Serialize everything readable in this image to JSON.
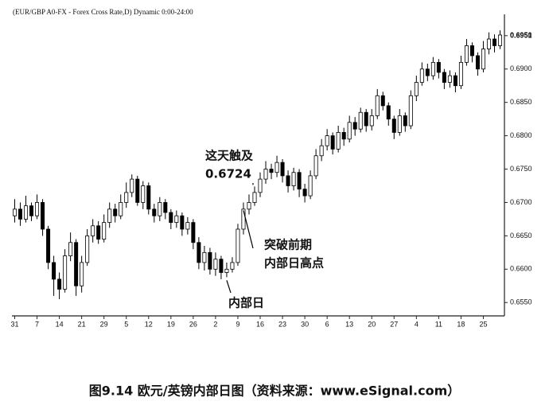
{
  "chart_data": {
    "type": "candlestick",
    "title": "(EUR/GBP A0-FX - Forex Cross Rate,D) Dynamic 0:00-24:00",
    "caption": "图9.14 欧元/英镑内部日图（资料来源：www.eSignal.com）",
    "annotations": [
      {
        "lines": [
          "这天触及",
          "0.6724"
        ],
        "index": 43
      },
      {
        "lines": [
          "突破前期",
          "内部日高点"
        ],
        "index": 41
      },
      {
        "lines": [
          "内部日"
        ],
        "index": 38
      }
    ],
    "up_color": "#ffffff",
    "down_color": "#000000",
    "open": [
      0.668,
      0.669,
      0.6675,
      0.6695,
      0.668,
      0.67,
      0.666,
      0.661,
      0.6585,
      0.657,
      0.662,
      0.664,
      0.6575,
      0.661,
      0.665,
      0.6665,
      0.6645,
      0.667,
      0.669,
      0.668,
      0.67,
      0.6715,
      0.6735,
      0.67,
      0.6725,
      0.669,
      0.668,
      0.67,
      0.6685,
      0.667,
      0.668,
      0.666,
      0.667,
      0.664,
      0.661,
      0.6625,
      0.66,
      0.6615,
      0.6595,
      0.66,
      0.661,
      0.666,
      0.669,
      0.67,
      0.6715,
      0.6735,
      0.675,
      0.6745,
      0.676,
      0.674,
      0.6725,
      0.6745,
      0.672,
      0.671,
      0.674,
      0.677,
      0.6785,
      0.68,
      0.678,
      0.6805,
      0.6795,
      0.682,
      0.681,
      0.6835,
      0.6815,
      0.683,
      0.686,
      0.6845,
      0.6825,
      0.6805,
      0.683,
      0.6815,
      0.686,
      0.688,
      0.69,
      0.689,
      0.691,
      0.6895,
      0.688,
      0.689,
      0.6875,
      0.691,
      0.6935,
      0.692,
      0.69,
      0.693,
      0.6945,
      0.6935
    ],
    "high": [
      0.6705,
      0.67,
      0.671,
      0.67,
      0.6712,
      0.6705,
      0.6665,
      0.662,
      0.6595,
      0.663,
      0.6655,
      0.6645,
      0.662,
      0.666,
      0.6675,
      0.6672,
      0.6682,
      0.67,
      0.6698,
      0.6712,
      0.673,
      0.6742,
      0.674,
      0.6732,
      0.673,
      0.6698,
      0.6708,
      0.6705,
      0.669,
      0.6688,
      0.6685,
      0.6678,
      0.6675,
      0.6648,
      0.6635,
      0.6632,
      0.6625,
      0.662,
      0.661,
      0.6618,
      0.6668,
      0.67,
      0.6712,
      0.6724,
      0.6745,
      0.6762,
      0.6758,
      0.677,
      0.6765,
      0.6748,
      0.6752,
      0.675,
      0.6728,
      0.6748,
      0.678,
      0.6795,
      0.681,
      0.6805,
      0.6815,
      0.6812,
      0.683,
      0.6828,
      0.6842,
      0.684,
      0.684,
      0.687,
      0.6866,
      0.685,
      0.683,
      0.684,
      0.6835,
      0.6868,
      0.689,
      0.691,
      0.6908,
      0.6918,
      0.6915,
      0.69,
      0.6898,
      0.6895,
      0.692,
      0.6945,
      0.694,
      0.6925,
      0.6942,
      0.6955,
      0.6952,
      0.6958
    ],
    "low": [
      0.667,
      0.6665,
      0.667,
      0.6672,
      0.6675,
      0.665,
      0.66,
      0.656,
      0.6555,
      0.6565,
      0.6612,
      0.656,
      0.6565,
      0.6605,
      0.664,
      0.6638,
      0.664,
      0.6662,
      0.667,
      0.6675,
      0.6692,
      0.6708,
      0.6695,
      0.669,
      0.6682,
      0.667,
      0.6672,
      0.6675,
      0.666,
      0.6662,
      0.665,
      0.6652,
      0.663,
      0.66,
      0.6598,
      0.6592,
      0.659,
      0.6585,
      0.6588,
      0.6595,
      0.6605,
      0.6652,
      0.6682,
      0.6695,
      0.6708,
      0.6728,
      0.6735,
      0.6738,
      0.673,
      0.6715,
      0.6718,
      0.6708,
      0.67,
      0.6705,
      0.6735,
      0.6762,
      0.6778,
      0.6772,
      0.6775,
      0.6785,
      0.679,
      0.68,
      0.6805,
      0.6806,
      0.6808,
      0.6825,
      0.6838,
      0.6815,
      0.6795,
      0.68,
      0.6806,
      0.681,
      0.6852,
      0.6875,
      0.6882,
      0.6884,
      0.6886,
      0.687,
      0.6872,
      0.6865,
      0.687,
      0.6905,
      0.691,
      0.689,
      0.6895,
      0.6922,
      0.6925,
      0.693
    ],
    "close": [
      0.669,
      0.6675,
      0.6695,
      0.668,
      0.67,
      0.666,
      0.661,
      0.6585,
      0.657,
      0.662,
      0.664,
      0.6575,
      0.661,
      0.665,
      0.6665,
      0.6645,
      0.667,
      0.669,
      0.668,
      0.67,
      0.6715,
      0.6735,
      0.67,
      0.6725,
      0.669,
      0.668,
      0.67,
      0.6685,
      0.667,
      0.668,
      0.666,
      0.667,
      0.664,
      0.661,
      0.6625,
      0.66,
      0.6615,
      0.6595,
      0.66,
      0.661,
      0.666,
      0.669,
      0.67,
      0.6715,
      0.6735,
      0.675,
      0.6745,
      0.676,
      0.674,
      0.6725,
      0.6745,
      0.672,
      0.671,
      0.674,
      0.677,
      0.6785,
      0.68,
      0.678,
      0.6805,
      0.6795,
      0.682,
      0.681,
      0.6835,
      0.6815,
      0.683,
      0.686,
      0.6845,
      0.6825,
      0.6805,
      0.683,
      0.6815,
      0.686,
      0.688,
      0.69,
      0.689,
      0.691,
      0.6895,
      0.688,
      0.689,
      0.6875,
      0.691,
      0.6935,
      0.692,
      0.69,
      0.693,
      0.6945,
      0.6935,
      0.6951
    ],
    "last_price": {
      "value": 0.6951,
      "label": "0.6951"
    },
    "xlim": [
      -0.5,
      87.5
    ],
    "xticks": [
      {
        "value": 0,
        "label": "31"
      },
      {
        "value": 4,
        "label": "7"
      },
      {
        "value": 8,
        "label": "14"
      },
      {
        "value": 12,
        "label": "21"
      },
      {
        "value": 16,
        "label": "29"
      },
      {
        "value": 20,
        "label": "5"
      },
      {
        "value": 24,
        "label": "12"
      },
      {
        "value": 28,
        "label": "19"
      },
      {
        "value": 32,
        "label": "26"
      },
      {
        "value": 36,
        "label": "2"
      },
      {
        "value": 40,
        "label": "9"
      },
      {
        "value": 44,
        "label": "16"
      },
      {
        "value": 48,
        "label": "23"
      },
      {
        "value": 52,
        "label": "30"
      },
      {
        "value": 56,
        "label": "6"
      },
      {
        "value": 60,
        "label": "13"
      },
      {
        "value": 64,
        "label": "20"
      },
      {
        "value": 68,
        "label": "27"
      },
      {
        "value": 72,
        "label": "4"
      },
      {
        "value": 76,
        "label": "11"
      },
      {
        "value": 80,
        "label": "18"
      },
      {
        "value": 84,
        "label": "25"
      }
    ],
    "ylim": [
      0.653,
      0.6982
    ],
    "yticks": [
      {
        "value": 0.655,
        "label": "0.6550"
      },
      {
        "value": 0.66,
        "label": "0.6600"
      },
      {
        "value": 0.665,
        "label": "0.6650"
      },
      {
        "value": 0.67,
        "label": "0.6700"
      },
      {
        "value": 0.675,
        "label": "0.6750"
      },
      {
        "value": 0.68,
        "label": "0.6800"
      },
      {
        "value": 0.685,
        "label": "0.6850"
      },
      {
        "value": 0.69,
        "label": "0.6900"
      },
      {
        "value": 0.695,
        "label": "0.6950"
      }
    ]
  }
}
